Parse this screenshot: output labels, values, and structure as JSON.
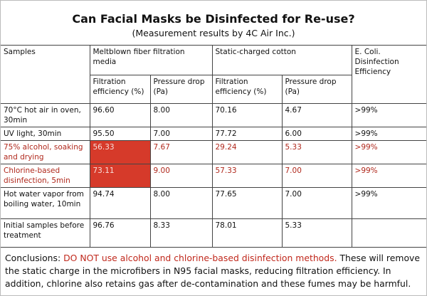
{
  "header": {
    "title": "Can Facial Masks be Disinfected for Re-use?",
    "subtitle": "(Measurement results by 4C Air Inc.)"
  },
  "table": {
    "groups": [
      "Samples",
      "Meltblown fiber filtration media",
      "Static-charged cotton",
      "E. Coli. Disinfection Efficiency"
    ],
    "subheaders": [
      "Filtration efficiency (%)",
      "Pressure drop (Pa)",
      "Filtration efficiency (%)",
      "Pressure drop (Pa)"
    ],
    "rows": [
      [
        "70°C hot air in oven, 30min",
        "96.60",
        "8.00",
        "70.16",
        "4.67",
        ">99%"
      ],
      [
        "UV light, 30min",
        "95.50",
        "7.00",
        "77.72",
        "6.00",
        ">99%"
      ],
      [
        "75% alcohol, soaking and drying",
        "56.33",
        "7.67",
        "29.24",
        "5.33",
        ">99%"
      ],
      [
        "Chlorine-based disinfection, 5min",
        "73.11",
        "9.00",
        "57.33",
        "7.00",
        ">99%"
      ],
      [
        "Hot water vapor from boiling water, 10min",
        "94.74",
        "8.00",
        "77.65",
        "7.00",
        ">99%"
      ],
      [
        "Initial samples before treatment",
        "96.76",
        "8.33",
        "78.01",
        "5.33",
        ""
      ]
    ]
  },
  "conclusion": [
    "Conclusions: ",
    "DO NOT use alcohol and chlorine-based disinfection methods.",
    " These will remove the static charge in the microfibers in N95 facial masks, reducing filtration efficiency. In addition, chlorine also retains gas after de-contamination and these fumes may be harmful."
  ]
}
